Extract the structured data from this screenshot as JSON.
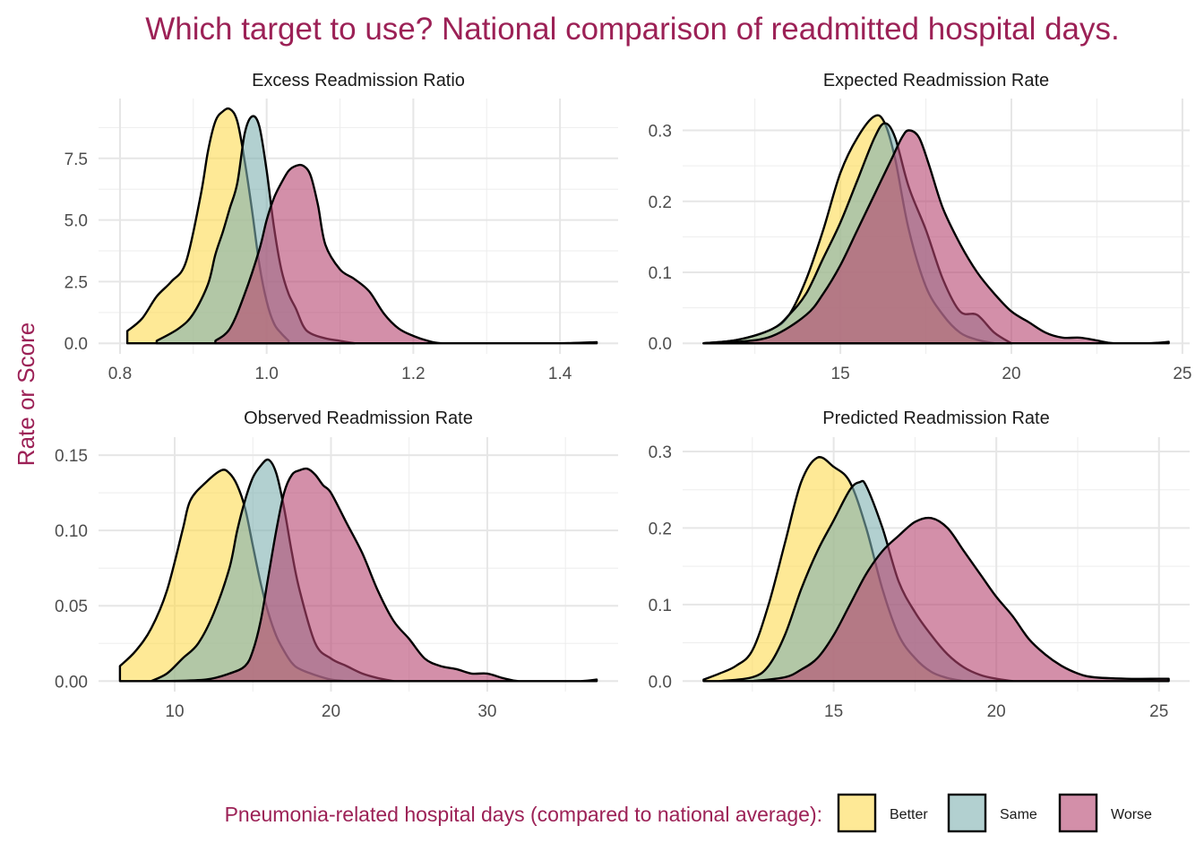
{
  "title": "Which target to use? National comparison of readmitted hospital days.",
  "ylabel": "Rate or Score",
  "legend": {
    "title": "Pneumonia-related hospital days (compared to national average):",
    "items": [
      {
        "label": "Better",
        "color": "#fddb50"
      },
      {
        "label": "Same",
        "color": "#7fb1b0"
      },
      {
        "label": "Worse",
        "color": "#b6446f"
      }
    ]
  },
  "chart_data": [
    {
      "type": "area",
      "title": "Excess Readmission Ratio",
      "xlim": [
        0.8,
        1.45
      ],
      "ylim": [
        0,
        9.5
      ],
      "xticks": [
        0.8,
        1.0,
        1.2,
        1.4
      ],
      "xtick_labels": [
        "0.8",
        "1.0",
        "1.2",
        "1.4"
      ],
      "yticks": [
        0,
        2.5,
        5.0,
        7.5
      ],
      "ytick_labels": [
        "0.0",
        "2.5",
        "5.0",
        "7.5"
      ],
      "series": [
        {
          "name": "Better",
          "x": [
            0.81,
            0.83,
            0.85,
            0.87,
            0.89,
            0.91,
            0.92,
            0.93,
            0.94,
            0.95,
            0.96,
            0.97,
            0.98,
            0.99,
            1.0,
            1.01,
            1.02,
            1.03
          ],
          "y": [
            0.5,
            1.0,
            1.9,
            2.5,
            3.3,
            6.0,
            7.8,
            9.0,
            9.4,
            9.5,
            9.0,
            7.4,
            5.4,
            3.2,
            1.7,
            0.8,
            0.4,
            0.1
          ]
        },
        {
          "name": "Same",
          "x": [
            0.85,
            0.88,
            0.9,
            0.92,
            0.93,
            0.94,
            0.95,
            0.96,
            0.97,
            0.98,
            0.99,
            1.0,
            1.01,
            1.02,
            1.03,
            1.04,
            1.05,
            1.06,
            1.08,
            1.1,
            1.12
          ],
          "y": [
            0.1,
            0.6,
            1.2,
            2.4,
            3.6,
            4.5,
            5.5,
            6.5,
            8.5,
            9.2,
            8.8,
            7.0,
            4.7,
            3.0,
            2.0,
            1.4,
            0.7,
            0.4,
            0.2,
            0.1,
            0.0
          ]
        },
        {
          "name": "Worse",
          "x": [
            0.93,
            0.95,
            0.97,
            0.99,
            1.0,
            1.01,
            1.02,
            1.03,
            1.04,
            1.05,
            1.06,
            1.07,
            1.08,
            1.1,
            1.12,
            1.14,
            1.16,
            1.18,
            1.2,
            1.22,
            1.24,
            1.3,
            1.4,
            1.45
          ],
          "y": [
            0.1,
            0.6,
            2.0,
            3.8,
            5.0,
            5.9,
            6.5,
            7.0,
            7.2,
            7.2,
            6.8,
            5.6,
            4.0,
            3.0,
            2.6,
            2.1,
            1.2,
            0.6,
            0.3,
            0.1,
            0.0,
            0.0,
            0.0,
            0.05
          ]
        }
      ]
    },
    {
      "type": "area",
      "title": "Expected Readmission Rate",
      "xlim": [
        11,
        24.6
      ],
      "ylim": [
        0,
        0.33
      ],
      "xticks": [
        15,
        20,
        25
      ],
      "xtick_labels": [
        "15",
        "20",
        "25"
      ],
      "yticks": [
        0,
        0.1,
        0.2,
        0.3
      ],
      "ytick_labels": [
        "0.0",
        "0.1",
        "0.2",
        "0.3"
      ],
      "series": [
        {
          "name": "Better",
          "x": [
            11.0,
            12.0,
            13.0,
            13.5,
            14.0,
            14.5,
            15.0,
            15.5,
            16.0,
            16.3,
            16.6,
            17.0,
            17.5,
            18.0,
            18.5,
            19.0,
            19.5
          ],
          "y": [
            0.0,
            0.005,
            0.02,
            0.04,
            0.09,
            0.16,
            0.24,
            0.29,
            0.32,
            0.31,
            0.26,
            0.16,
            0.08,
            0.04,
            0.015,
            0.005,
            0.0
          ]
        },
        {
          "name": "Same",
          "x": [
            11.0,
            12.0,
            13.0,
            13.5,
            14.0,
            14.5,
            15.0,
            15.5,
            16.0,
            16.3,
            16.6,
            17.0,
            17.5,
            18.0,
            18.5,
            19.0,
            19.5,
            20.0
          ],
          "y": [
            0.0,
            0.005,
            0.02,
            0.04,
            0.07,
            0.12,
            0.17,
            0.23,
            0.29,
            0.31,
            0.29,
            0.22,
            0.16,
            0.09,
            0.045,
            0.04,
            0.015,
            0.0
          ]
        },
        {
          "name": "Worse",
          "x": [
            11.0,
            12.0,
            13.0,
            14.0,
            14.5,
            15.0,
            15.5,
            16.0,
            16.5,
            16.8,
            17.0,
            17.3,
            17.6,
            18.0,
            18.5,
            19.0,
            19.5,
            20.0,
            20.5,
            21.0,
            21.5,
            22.0,
            22.5,
            23.0,
            24.0,
            24.6
          ],
          "y": [
            0.0,
            0.002,
            0.01,
            0.04,
            0.07,
            0.11,
            0.16,
            0.21,
            0.26,
            0.29,
            0.3,
            0.29,
            0.25,
            0.19,
            0.14,
            0.1,
            0.07,
            0.045,
            0.03,
            0.015,
            0.008,
            0.008,
            0.004,
            0.0,
            0.0,
            0.002
          ]
        }
      ]
    },
    {
      "type": "area",
      "title": "Observed Readmission Rate",
      "xlim": [
        6.5,
        37
      ],
      "ylim": [
        0,
        0.155
      ],
      "xticks": [
        10,
        20,
        30
      ],
      "xtick_labels": [
        "10",
        "20",
        "30"
      ],
      "yticks": [
        0,
        0.05,
        0.1,
        0.15
      ],
      "ytick_labels": [
        "0.00",
        "0.05",
        "0.10",
        "0.15"
      ],
      "series": [
        {
          "name": "Better",
          "x": [
            6.5,
            7.5,
            8.5,
            9.5,
            10.5,
            11.0,
            12.0,
            13.0,
            13.5,
            14.0,
            14.5,
            15.0,
            15.5,
            16.0,
            16.5,
            17.0,
            17.5,
            18.0,
            19.0,
            20.0,
            21.0
          ],
          "y": [
            0.01,
            0.02,
            0.035,
            0.06,
            0.1,
            0.12,
            0.132,
            0.14,
            0.138,
            0.13,
            0.115,
            0.09,
            0.065,
            0.045,
            0.03,
            0.02,
            0.012,
            0.008,
            0.004,
            0.001,
            0.0
          ]
        },
        {
          "name": "Same",
          "x": [
            8.5,
            9.5,
            10.5,
            11.5,
            12.5,
            13.5,
            14.0,
            14.5,
            15.0,
            15.5,
            16.0,
            16.5,
            17.0,
            17.5,
            18.0,
            19.0,
            20.0,
            21.0,
            22.0,
            23.0,
            24.0
          ],
          "y": [
            0.0,
            0.005,
            0.015,
            0.025,
            0.045,
            0.075,
            0.1,
            0.12,
            0.135,
            0.143,
            0.147,
            0.138,
            0.115,
            0.085,
            0.06,
            0.025,
            0.015,
            0.01,
            0.005,
            0.002,
            0.0
          ]
        },
        {
          "name": "Worse",
          "x": [
            9.5,
            12.0,
            13.5,
            14.5,
            15.0,
            15.5,
            16.0,
            16.5,
            17.0,
            17.5,
            18.0,
            18.5,
            19.0,
            19.5,
            20.0,
            21.0,
            22.0,
            23.0,
            24.0,
            25.0,
            26.0,
            27.0,
            28.0,
            29.0,
            30.0,
            31.0,
            32.0,
            34.0,
            36.0,
            37.0
          ],
          "y": [
            0.0,
            0.001,
            0.005,
            0.01,
            0.02,
            0.04,
            0.07,
            0.1,
            0.125,
            0.137,
            0.14,
            0.141,
            0.137,
            0.13,
            0.125,
            0.105,
            0.085,
            0.06,
            0.04,
            0.028,
            0.015,
            0.01,
            0.008,
            0.005,
            0.005,
            0.002,
            0.0,
            0.0,
            0.0,
            0.001
          ]
        }
      ]
    },
    {
      "type": "area",
      "title": "Predicted Readmission Rate",
      "xlim": [
        11,
        25.3
      ],
      "ylim": [
        0,
        0.305
      ],
      "xticks": [
        15,
        20,
        25
      ],
      "xtick_labels": [
        "15",
        "20",
        "25"
      ],
      "yticks": [
        0,
        0.1,
        0.2,
        0.3
      ],
      "ytick_labels": [
        "0.0",
        "0.1",
        "0.2",
        "0.3"
      ],
      "series": [
        {
          "name": "Better",
          "x": [
            11.0,
            11.5,
            12.0,
            12.5,
            13.0,
            13.5,
            14.0,
            14.5,
            15.0,
            15.5,
            16.0,
            16.5,
            17.0,
            17.5,
            18.0,
            18.5,
            19.0
          ],
          "y": [
            0.002,
            0.01,
            0.02,
            0.04,
            0.1,
            0.18,
            0.26,
            0.292,
            0.28,
            0.26,
            0.2,
            0.12,
            0.06,
            0.03,
            0.012,
            0.004,
            0.0
          ]
        },
        {
          "name": "Same",
          "x": [
            11.5,
            12.5,
            13.0,
            13.5,
            14.0,
            14.5,
            15.0,
            15.5,
            15.8,
            16.0,
            16.5,
            17.0,
            17.5,
            18.0,
            18.5,
            19.0,
            19.5,
            20.0,
            20.5
          ],
          "y": [
            0.0,
            0.005,
            0.02,
            0.06,
            0.12,
            0.17,
            0.21,
            0.25,
            0.26,
            0.255,
            0.2,
            0.13,
            0.09,
            0.06,
            0.035,
            0.018,
            0.008,
            0.003,
            0.0
          ]
        },
        {
          "name": "Worse",
          "x": [
            12.5,
            13.5,
            14.0,
            14.5,
            15.0,
            15.5,
            16.0,
            16.5,
            17.0,
            17.5,
            18.0,
            18.5,
            19.0,
            19.5,
            20.0,
            20.5,
            21.0,
            21.5,
            22.0,
            22.5,
            23.0,
            24.0,
            25.0,
            25.3
          ],
          "y": [
            0.0,
            0.005,
            0.015,
            0.03,
            0.06,
            0.1,
            0.14,
            0.17,
            0.19,
            0.208,
            0.213,
            0.2,
            0.17,
            0.14,
            0.11,
            0.085,
            0.055,
            0.035,
            0.02,
            0.01,
            0.005,
            0.003,
            0.003,
            0.003
          ]
        }
      ]
    }
  ]
}
